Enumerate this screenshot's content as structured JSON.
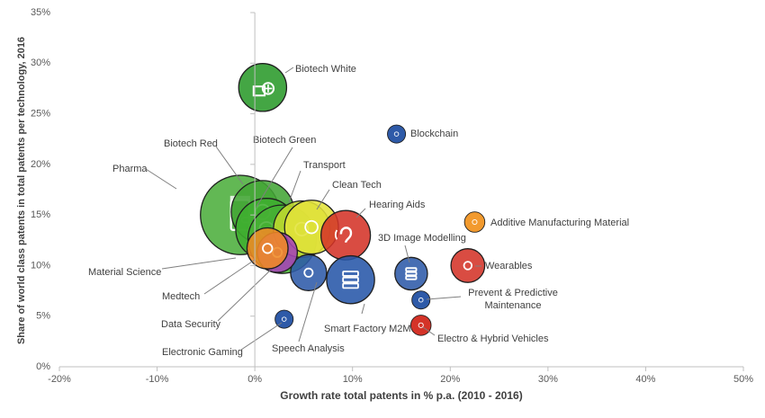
{
  "chart_data": {
    "type": "scatter",
    "title": "",
    "xlabel": "Growth rate total patents in % p.a.  (2010 - 2016)",
    "ylabel": "Share of world class patents in total patents per technology,  2016",
    "xlim": [
      -20,
      50
    ],
    "ylim": [
      0,
      35
    ],
    "x_ticks": [
      -20,
      -10,
      0,
      10,
      20,
      30,
      40,
      50
    ],
    "x_tick_labels": [
      "-20%",
      "-10%",
      "0%",
      "10%",
      "20%",
      "30%",
      "40%",
      "50%"
    ],
    "y_ticks": [
      0,
      5,
      10,
      15,
      20,
      25,
      30,
      35
    ],
    "y_tick_labels": [
      "0%",
      "5%",
      "10%",
      "15%",
      "20%",
      "25%",
      "30%",
      "35%"
    ],
    "grid": false,
    "legend": "none",
    "points": [
      {
        "label": "Pharma",
        "x": -1.5,
        "y": 15.0,
        "size": 82,
        "color": "#4cae3c",
        "icon": "medicine-bottle-icon"
      },
      {
        "label": "Biotech Red",
        "x": 0.8,
        "y": 15.3,
        "size": 50,
        "color": "#43a535",
        "icon": "dna-icon"
      },
      {
        "label": "Biotech Green",
        "x": 1.2,
        "y": 13.6,
        "size": 48,
        "color": "#3fae2f",
        "icon": "leaf-icon"
      },
      {
        "label": "Material Science",
        "x": 2.8,
        "y": 12.6,
        "size": 60,
        "color": "#47b033",
        "icon": "molecule-icon"
      },
      {
        "label": "Transport",
        "x": 4.8,
        "y": 13.6,
        "size": 40,
        "color": "#c2d92f",
        "icon": "truck-icon"
      },
      {
        "label": "Clean Tech",
        "x": 5.8,
        "y": 13.8,
        "size": 36,
        "color": "#e2e23a",
        "icon": "lightbulb-icon"
      },
      {
        "label": "Hearing Aids",
        "x": 9.3,
        "y": 13.0,
        "size": 30,
        "color": "#d43328",
        "icon": "ear-icon"
      },
      {
        "label": "3D Image Modelling",
        "x": 16.0,
        "y": 9.2,
        "size": 12,
        "color": "#2e5aa8",
        "icon": "monitor-icon"
      },
      {
        "label": "Wearables",
        "x": 21.8,
        "y": 10.0,
        "size": 13,
        "color": "#d43328",
        "icon": "smartwatch-icon"
      },
      {
        "label": "Blockchain",
        "x": 14.5,
        "y": 23.0,
        "size": 3,
        "color": "#2e5aa8",
        "icon": "chain-icon"
      },
      {
        "label": "Additive Manufacturing Material",
        "x": 22.5,
        "y": 14.3,
        "size": 4,
        "color": "#f29a2e",
        "icon": "printer-icon"
      },
      {
        "label": "Prevent & Predictive Maintenance",
        "x": 17.0,
        "y": 6.6,
        "size": 3,
        "color": "#2e5aa8",
        "icon": "wrench-icon"
      },
      {
        "label": "Electro & Hybrid Vehicles",
        "x": 17.0,
        "y": 4.1,
        "size": 4,
        "color": "#d43328",
        "icon": "car-icon"
      },
      {
        "label": "Electronic Gaming",
        "x": 3.0,
        "y": 4.7,
        "size": 3,
        "color": "#2e5aa8",
        "icon": "gamepad-icon"
      },
      {
        "label": "Speech Analysis",
        "x": 5.5,
        "y": 9.3,
        "size": 15,
        "color": "#2e5aa8",
        "icon": "speech-icon"
      },
      {
        "label": "Smart Factory M2M",
        "x": 9.8,
        "y": 8.6,
        "size": 28,
        "color": "#2757a8",
        "icon": "server-icon"
      },
      {
        "label": "Data Security",
        "x": 2.3,
        "y": 11.3,
        "size": 19,
        "color": "#a742b8",
        "icon": "lock-icon"
      },
      {
        "label": "Medtech",
        "x": 1.3,
        "y": 11.7,
        "size": 20,
        "color": "#f08a24",
        "icon": "ecg-icon"
      },
      {
        "label": "Biotech White",
        "x": 0.8,
        "y": 27.6,
        "size": 28,
        "color": "#2a9a2a",
        "icon": "factory-icon"
      }
    ]
  }
}
